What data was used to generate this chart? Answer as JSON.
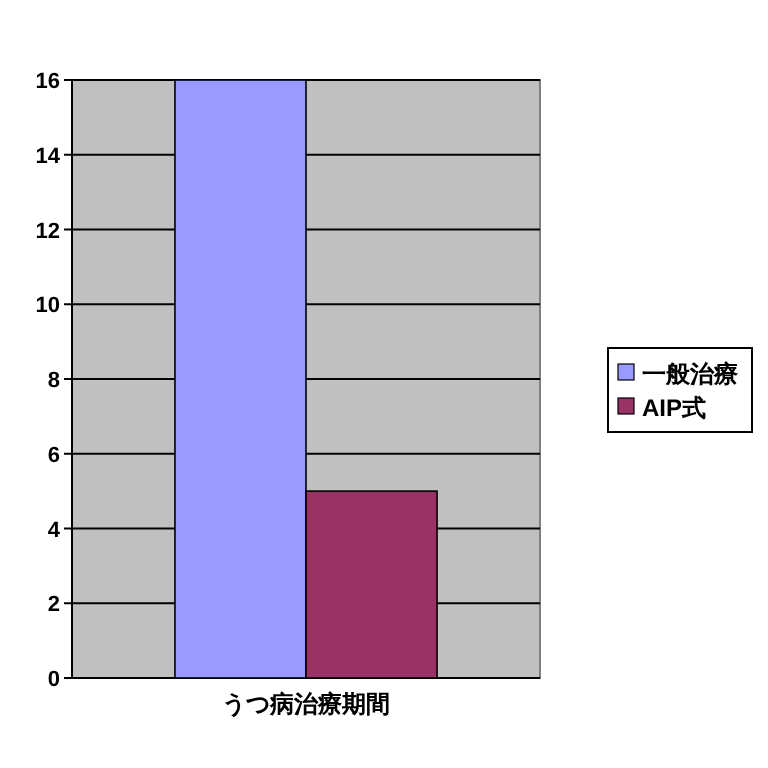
{
  "chart_data": {
    "type": "bar",
    "categories": [
      "うつ病治療期間"
    ],
    "series": [
      {
        "name": "一般治療",
        "color": "#9999ff",
        "values": [
          16
        ]
      },
      {
        "name": "AIP式",
        "color": "#993366",
        "values": [
          5
        ]
      }
    ],
    "ylim": [
      0,
      16
    ],
    "yticks": [
      0,
      2,
      4,
      6,
      8,
      10,
      12,
      14,
      16
    ],
    "grid": "y",
    "legend": "right"
  }
}
